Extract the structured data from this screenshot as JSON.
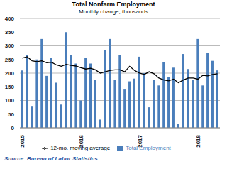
{
  "chart_data": {
    "type": "bar",
    "title": "Total Nonfarm Employment",
    "subtitle": "Monthly change,  thousands",
    "source": "Source: Bureau of Labor Statistics",
    "categories": [
      "2015",
      null,
      null,
      null,
      null,
      null,
      null,
      null,
      null,
      null,
      null,
      null,
      "2016",
      null,
      null,
      null,
      null,
      null,
      null,
      null,
      null,
      null,
      null,
      null,
      "2017",
      null,
      null,
      null,
      null,
      null,
      null,
      null,
      null,
      null,
      null,
      null,
      "2018",
      null,
      null,
      null,
      null
    ],
    "series": [
      {
        "name": "Total Employment",
        "type": "bar",
        "color": "#4a7ebb",
        "values": [
          210,
          265,
          80,
          250,
          325,
          190,
          255,
          165,
          85,
          350,
          265,
          235,
          100,
          255,
          235,
          175,
          30,
          285,
          325,
          175,
          265,
          140,
          170,
          180,
          260,
          200,
          75,
          175,
          155,
          240,
          185,
          220,
          15,
          270,
          215,
          175,
          325,
          155,
          275,
          245,
          210
        ]
      },
      {
        "name": "12-mo. moving average",
        "type": "line",
        "color": "#000000",
        "values": [
          255,
          260,
          245,
          242,
          245,
          238,
          240,
          230,
          225,
          232,
          228,
          226,
          220,
          215,
          218,
          212,
          200,
          205,
          210,
          212,
          212,
          205,
          225,
          210,
          200,
          195,
          205,
          198,
          182,
          175,
          172,
          178,
          165,
          175,
          182,
          182,
          178,
          192,
          190,
          195,
          198
        ]
      }
    ],
    "ylim": [
      0,
      400
    ],
    "yticks": [
      0,
      50,
      100,
      150,
      200,
      250,
      300,
      350,
      400
    ],
    "grid": true,
    "legend": "bottom"
  }
}
